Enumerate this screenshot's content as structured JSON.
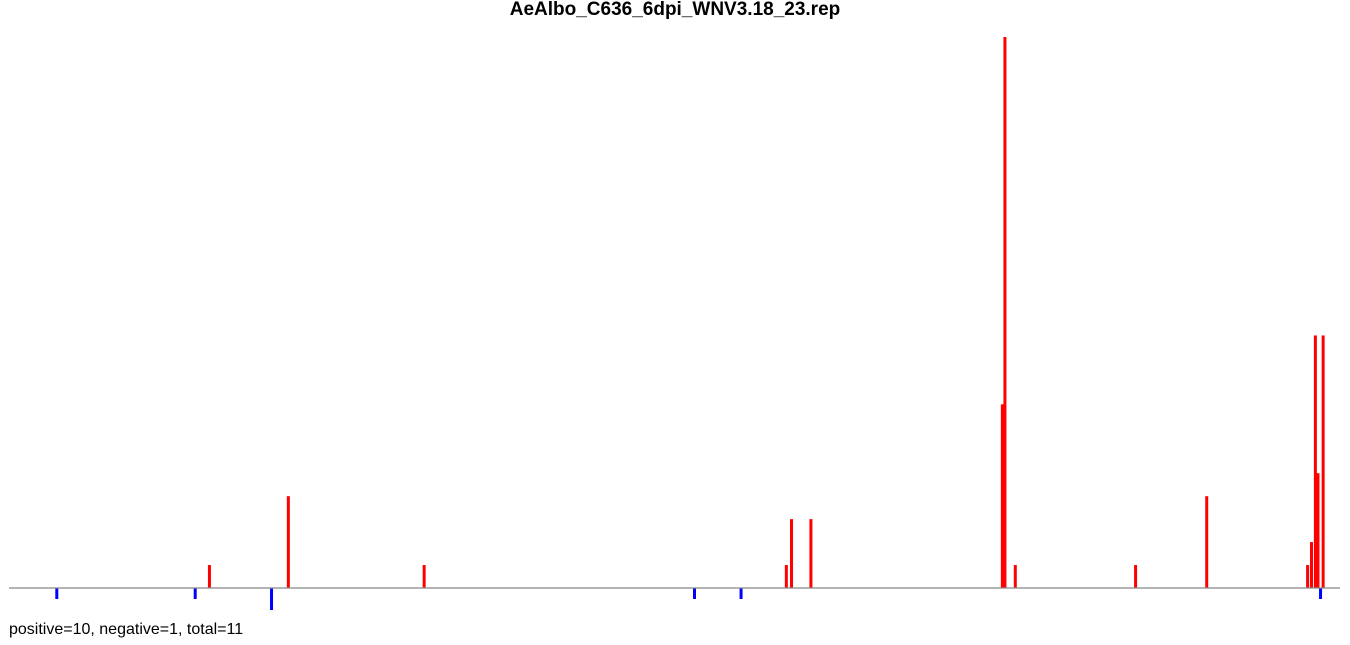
{
  "chart_data": {
    "type": "bar",
    "title": "AeAlbo_C636_6dpi_WNV3.18_23.rep",
    "summary_label": "positive=10, negative=1, total=11",
    "xlim": [
      0,
      1000
    ],
    "ylim_positive": [
      0,
      24
    ],
    "ylim_negative": [
      0,
      2
    ],
    "grid": false,
    "legend": "none",
    "colors": {
      "positive": "#ff0000",
      "negative": "#0000ff",
      "baseline": "#888888"
    },
    "series": [
      {
        "sign": "positive",
        "color": "#ff0000",
        "x": [
          148,
          209,
          314,
          594,
          598,
          613,
          761,
          763,
          771,
          864,
          919,
          997,
          1000,
          1003,
          1005,
          1009
        ],
        "values": [
          1,
          4,
          1,
          1,
          3,
          3,
          8,
          24,
          1,
          1,
          4,
          1,
          2,
          11,
          5,
          11
        ]
      },
      {
        "sign": "negative",
        "color": "#0000ff",
        "x": [
          30,
          137,
          196,
          523,
          559,
          1007
        ],
        "values": [
          1,
          1,
          2,
          1,
          1,
          1
        ]
      }
    ]
  }
}
